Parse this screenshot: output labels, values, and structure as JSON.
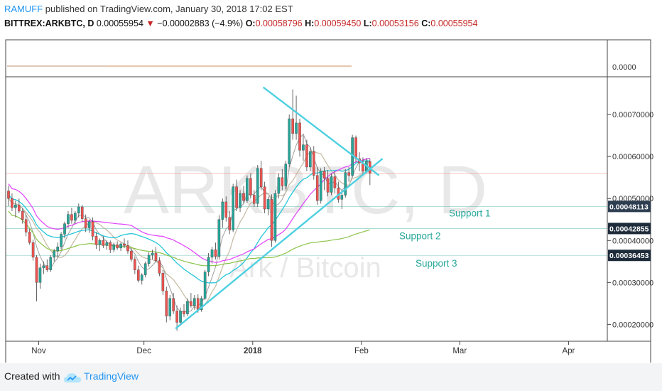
{
  "header": {
    "user": "RAMUFF",
    "published": "published on TradingView.com, January 30, 2018 17:02 EST"
  },
  "ohlc": {
    "symbol": "BITTREX:ARKBTC, D",
    "last": "0.00055954",
    "change": "−0.00002883 (−4.9%)",
    "o_label": "O:",
    "o": "0.00058796",
    "h_label": "H:",
    "h": "0.00059450",
    "l_label": "L:",
    "l": "0.00053156",
    "c_label": "C:",
    "c": "0.00055954"
  },
  "watermark": {
    "symbol": "ARKBTC, D",
    "name": "Ark / Bitcoin"
  },
  "indicator_pane": {
    "value_label": "0.0000"
  },
  "footer": {
    "created_with": "Created with",
    "brand": "TradingView"
  },
  "colors": {
    "up": "#26a69a",
    "down": "#ef5350",
    "wedge": "#4dd0e1",
    "ma_fast": "#9e9e9e",
    "ma_tan": "#c5b9a0",
    "ma_magenta": "#e040fb",
    "ma_cyan": "#26c6da",
    "ma_green": "#8bc34a",
    "support": "#26a69a"
  },
  "chart_data": {
    "type": "candlestick",
    "y_axis": {
      "ylim": [
        0.00016,
        0.00079
      ],
      "ticks": [
        "0.00020000",
        "0.00030000",
        "0.00040000",
        "0.00050000",
        "0.00060000",
        "0.00070000"
      ]
    },
    "x_axis": {
      "ticks": [
        {
          "label": "Nov",
          "date": "2017-11-01"
        },
        {
          "label": "Dec",
          "date": "2017-12-01"
        },
        {
          "label": "2018",
          "date": "2018-01-01"
        },
        {
          "label": "Feb",
          "date": "2018-02-01"
        },
        {
          "label": "Mar",
          "date": "2018-03-01"
        },
        {
          "label": "Apr",
          "date": "2018-04-01"
        }
      ]
    },
    "first_date": "2017-10-23",
    "last_price_line": 0.00055954,
    "candles": [
      [
        0.000518,
        0.00053,
        0.000482,
        0.0005
      ],
      [
        0.0005,
        0.000512,
        0.00047,
        0.000478
      ],
      [
        0.000478,
        0.000495,
        0.000455,
        0.000485
      ],
      [
        0.000485,
        0.0005,
        0.000465,
        0.00047
      ],
      [
        0.00047,
        0.000478,
        0.00044,
        0.00045
      ],
      [
        0.00045,
        0.000462,
        0.00041,
        0.00042
      ],
      [
        0.00042,
        0.000428,
        0.00039,
        0.000395
      ],
      [
        0.000395,
        0.000402,
        0.000352,
        0.00036
      ],
      [
        0.00036,
        0.000365,
        0.000255,
        0.0003
      ],
      [
        0.0003,
        0.000345,
        0.000285,
        0.000335
      ],
      [
        0.000335,
        0.00035,
        0.00032,
        0.00034
      ],
      [
        0.00034,
        0.000355,
        0.000325,
        0.00033
      ],
      [
        0.00033,
        0.000365,
        0.000325,
        0.00036
      ],
      [
        0.00036,
        0.00038,
        0.00035,
        0.000375
      ],
      [
        0.000375,
        0.000395,
        0.00036,
        0.000385
      ],
      [
        0.000385,
        0.00042,
        0.000378,
        0.000415
      ],
      [
        0.000415,
        0.000445,
        0.000405,
        0.00044
      ],
      [
        0.00044,
        0.00047,
        0.00043,
        0.000462
      ],
      [
        0.000462,
        0.000478,
        0.00044,
        0.000448
      ],
      [
        0.000448,
        0.00047,
        0.00044,
        0.000465
      ],
      [
        0.000465,
        0.000488,
        0.000455,
        0.00048
      ],
      [
        0.00048,
        0.000485,
        0.000445,
        0.000452
      ],
      [
        0.000452,
        0.000462,
        0.00042,
        0.00043
      ],
      [
        0.00043,
        0.00045,
        0.000418,
        0.000445
      ],
      [
        0.000445,
        0.000455,
        0.0004,
        0.00041
      ],
      [
        0.00041,
        0.00042,
        0.00038,
        0.00039
      ],
      [
        0.00039,
        0.000405,
        0.000375,
        0.0004
      ],
      [
        0.0004,
        0.00041,
        0.000382,
        0.000388
      ],
      [
        0.000388,
        0.0004,
        0.000378,
        0.000395
      ],
      [
        0.000395,
        0.0004,
        0.00037,
        0.000378
      ],
      [
        0.000378,
        0.000395,
        0.000372,
        0.00039
      ],
      [
        0.00039,
        0.000398,
        0.000378,
        0.000382
      ],
      [
        0.000382,
        0.000395,
        0.000375,
        0.000392
      ],
      [
        0.000392,
        0.000405,
        0.000382,
        0.000388
      ],
      [
        0.000388,
        0.0004,
        0.000368,
        0.000375
      ],
      [
        0.000375,
        0.000382,
        0.00035,
        0.000355
      ],
      [
        0.000355,
        0.000362,
        0.00032,
        0.00033
      ],
      [
        0.00033,
        0.00034,
        0.0003,
        0.000305
      ],
      [
        0.000305,
        0.000322,
        0.000295,
        0.000318
      ],
      [
        0.000318,
        0.00035,
        0.000312,
        0.000345
      ],
      [
        0.000345,
        0.000372,
        0.000338,
        0.000365
      ],
      [
        0.000365,
        0.000378,
        0.000355,
        0.00037
      ],
      [
        0.00037,
        0.000385,
        0.000348,
        0.000352
      ],
      [
        0.000352,
        0.00036,
        0.000315,
        0.000322
      ],
      [
        0.000322,
        0.00033,
        0.00027,
        0.00028
      ],
      [
        0.00028,
        0.00029,
        0.000205,
        0.00022
      ],
      [
        0.00022,
        0.00027,
        0.00021,
        0.000262
      ],
      [
        0.000262,
        0.000275,
        0.000225,
        0.000232
      ],
      [
        0.000232,
        0.000245,
        0.000185,
        0.000205
      ],
      [
        0.000205,
        0.00024,
        0.000198,
        0.000232
      ],
      [
        0.000232,
        0.000248,
        0.000218,
        0.000225
      ],
      [
        0.000225,
        0.000262,
        0.00022,
        0.000255
      ],
      [
        0.000255,
        0.000275,
        0.00024,
        0.000245
      ],
      [
        0.000245,
        0.00027,
        0.000235,
        0.000262
      ],
      [
        0.000262,
        0.000272,
        0.000228,
        0.000235
      ],
      [
        0.000235,
        0.000268,
        0.00023,
        0.000262
      ],
      [
        0.000262,
        0.00033,
        0.000258,
        0.000325
      ],
      [
        0.000325,
        0.00037,
        0.000315,
        0.00036
      ],
      [
        0.00036,
        0.000385,
        0.000345,
        0.000378
      ],
      [
        0.000378,
        0.000395,
        0.000355,
        0.000362
      ],
      [
        0.000362,
        0.00046,
        0.000355,
        0.00045
      ],
      [
        0.00045,
        0.0005,
        0.00043,
        0.000492
      ],
      [
        0.000492,
        0.000505,
        0.000445,
        0.000455
      ],
      [
        0.000455,
        0.00047,
        0.000415,
        0.000425
      ],
      [
        0.000425,
        0.000535,
        0.00042,
        0.000528
      ],
      [
        0.000528,
        0.000545,
        0.00047,
        0.000478
      ],
      [
        0.000478,
        0.00052,
        0.000468,
        0.000512
      ],
      [
        0.000512,
        0.00053,
        0.000488,
        0.000495
      ],
      [
        0.000495,
        0.000555,
        0.00049,
        0.000548
      ],
      [
        0.000548,
        0.00056,
        0.0005,
        0.000508
      ],
      [
        0.000508,
        0.00052,
        0.00048,
        0.000488
      ],
      [
        0.000488,
        0.00058,
        0.00048,
        0.000572
      ],
      [
        0.000572,
        0.00059,
        0.00052,
        0.000528
      ],
      [
        0.000528,
        0.00054,
        0.000465,
        0.000475
      ],
      [
        0.000475,
        0.000505,
        0.00046,
        0.000498
      ],
      [
        0.000498,
        0.00051,
        0.000385,
        0.0004
      ],
      [
        0.0004,
        0.00052,
        0.000395,
        0.000512
      ],
      [
        0.000512,
        0.00056,
        0.0005,
        0.00055
      ],
      [
        0.00055,
        0.00057,
        0.00052,
        0.00053
      ],
      [
        0.00053,
        0.00059,
        0.000522,
        0.000582
      ],
      [
        0.000582,
        0.0007,
        0.000575,
        0.00069
      ],
      [
        0.00069,
        0.00076,
        0.00064,
        0.000655
      ],
      [
        0.000655,
        0.000745,
        0.00064,
        0.00068
      ],
      [
        0.00068,
        0.00069,
        0.0006,
        0.000615
      ],
      [
        0.000615,
        0.00065,
        0.00059,
        0.000628
      ],
      [
        0.000628,
        0.00064,
        0.000565,
        0.000575
      ],
      [
        0.000575,
        0.000622,
        0.000565,
        0.000612
      ],
      [
        0.000612,
        0.000625,
        0.000545,
        0.000555
      ],
      [
        0.000555,
        0.000575,
        0.000485,
        0.000495
      ],
      [
        0.000495,
        0.000572,
        0.000488,
        0.000565
      ],
      [
        0.000565,
        0.000575,
        0.00052,
        0.000548
      ],
      [
        0.000548,
        0.000568,
        0.000505,
        0.000515
      ],
      [
        0.000515,
        0.00056,
        0.000508,
        0.000552
      ],
      [
        0.000552,
        0.000565,
        0.000512,
        0.000525
      ],
      [
        0.000525,
        0.00054,
        0.00049,
        0.000498
      ],
      [
        0.000498,
        0.00052,
        0.000475,
        0.000508
      ],
      [
        0.000508,
        0.00057,
        0.000502,
        0.000562
      ],
      [
        0.000562,
        0.000575,
        0.00054,
        0.000555
      ],
      [
        0.000555,
        0.000652,
        0.00055,
        0.000645
      ],
      [
        0.000645,
        0.00065,
        0.000585,
        0.000595
      ],
      [
        0.000595,
        0.00061,
        0.000565,
        0.000585
      ],
      [
        0.000585,
        0.000598,
        0.000555,
        0.000565
      ],
      [
        0.000565,
        0.000595,
        0.00056,
        0.000588
      ],
      [
        0.000588,
        0.000595,
        0.000532,
        0.00056
      ]
    ],
    "wedge_lines": [
      {
        "from": [
          "2017-12-10",
          0.00019
        ],
        "to": [
          "2018-02-07",
          0.000595
        ]
      },
      {
        "from": [
          "2018-01-04",
          0.000765
        ],
        "to": [
          "2018-02-06",
          0.000555
        ]
      }
    ],
    "support_levels": [
      {
        "label": "Support 1",
        "value": 0.00048113,
        "axis_label": "0.00048113"
      },
      {
        "label": "Support 2",
        "value": 0.00042855,
        "axis_label": "0.00042855"
      },
      {
        "label": "Support 3",
        "value": 0.00036453,
        "axis_label": "0.00036453"
      }
    ]
  }
}
